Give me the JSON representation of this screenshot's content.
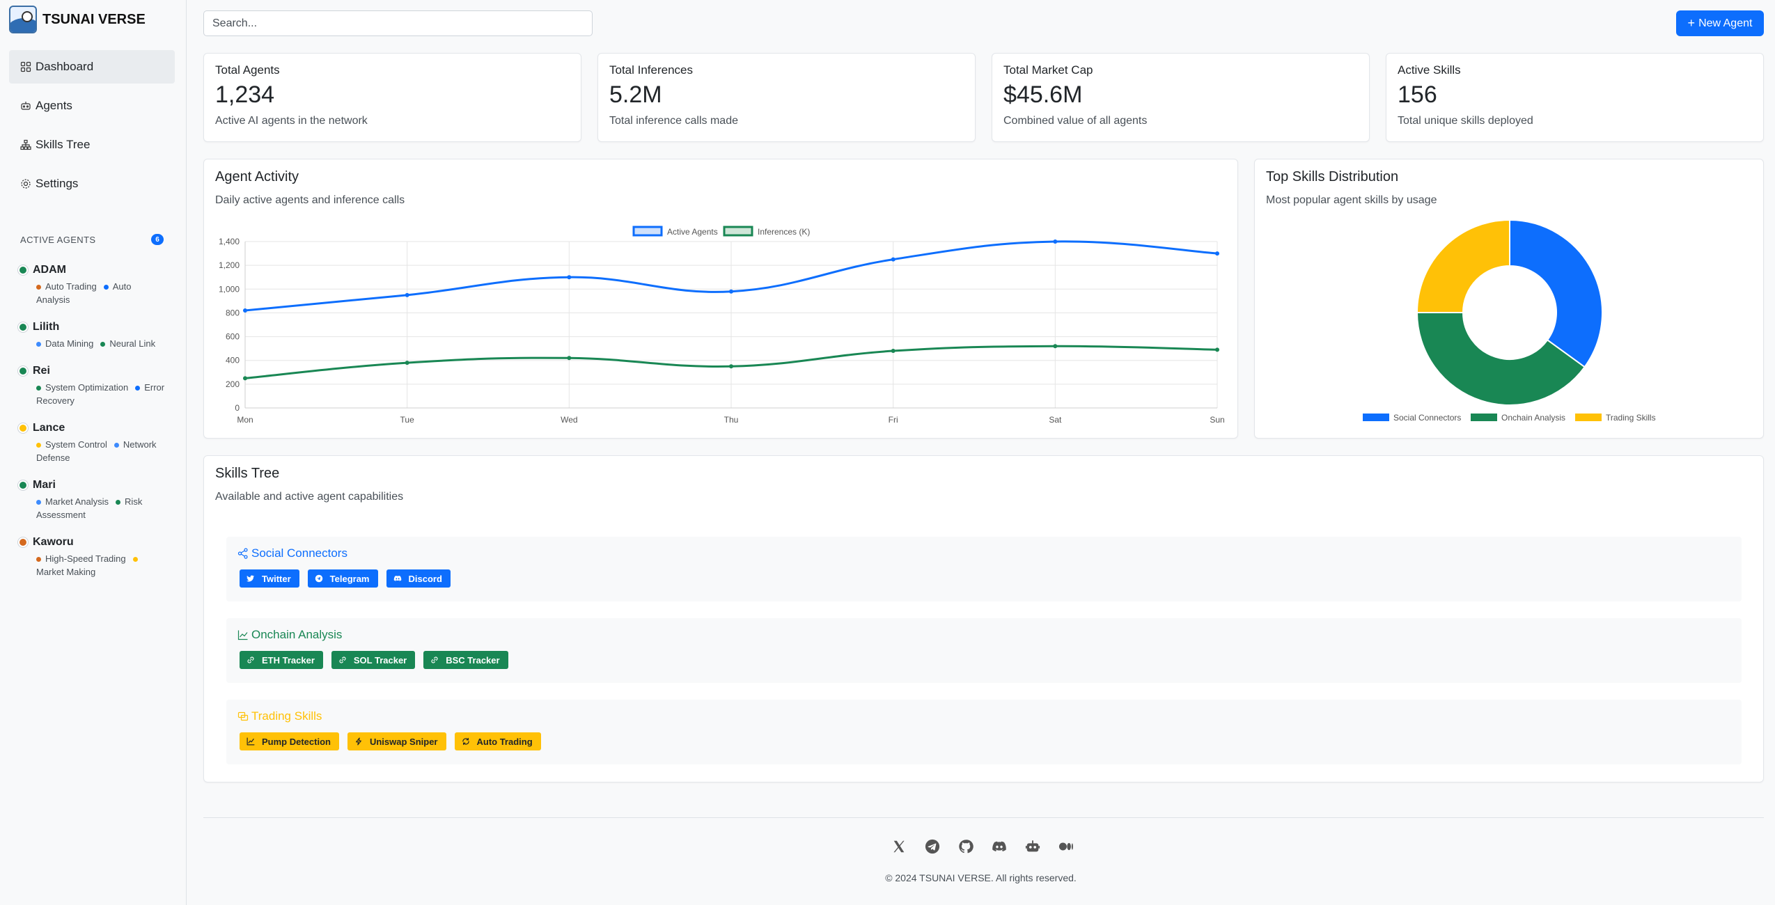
{
  "app": {
    "brand": "TSUNAI VERSE"
  },
  "nav": [
    {
      "label": "Dashboard",
      "icon": "dashboard-icon",
      "active": true
    },
    {
      "label": "Agents",
      "icon": "robot-icon",
      "active": false
    },
    {
      "label": "Skills Tree",
      "icon": "diagram-icon",
      "active": false
    },
    {
      "label": "Settings",
      "icon": "gear-icon",
      "active": false
    }
  ],
  "active_agents": {
    "title": "ACTIVE AGENTS",
    "count": "6",
    "agents": [
      {
        "name": "ADAM",
        "status_color": "#198754",
        "skills": [
          {
            "label": "Auto Trading",
            "color": "#d4691e"
          },
          {
            "label": "Auto Analysis",
            "color": "#0d6efd"
          }
        ]
      },
      {
        "name": "Lilith",
        "status_color": "#198754",
        "skills": [
          {
            "label": "Data Mining",
            "color": "#3d8bfd"
          },
          {
            "label": "Neural Link",
            "color": "#198754"
          }
        ]
      },
      {
        "name": "Rei",
        "status_color": "#198754",
        "skills": [
          {
            "label": "System Optimization",
            "color": "#198754"
          },
          {
            "label": "Error Recovery",
            "color": "#0d6efd"
          }
        ]
      },
      {
        "name": "Lance",
        "status_color": "#ffc107",
        "skills": [
          {
            "label": "System Control",
            "color": "#ffc107"
          },
          {
            "label": "Network Defense",
            "color": "#3d8bfd"
          }
        ]
      },
      {
        "name": "Mari",
        "status_color": "#198754",
        "skills": [
          {
            "label": "Market Analysis",
            "color": "#3d8bfd"
          },
          {
            "label": "Risk Assessment",
            "color": "#198754"
          }
        ]
      },
      {
        "name": "Kaworu",
        "status_color": "#d4691e",
        "skills": [
          {
            "label": "High-Speed Trading",
            "color": "#d4691e"
          },
          {
            "label": "Market Making",
            "color": "#ffc107"
          }
        ]
      }
    ]
  },
  "header": {
    "search_placeholder": "Search...",
    "new_agent_label": "New Agent"
  },
  "stats": [
    {
      "label": "Total Agents",
      "value": "1,234",
      "desc": "Active AI agents in the network"
    },
    {
      "label": "Total Inferences",
      "value": "5.2M",
      "desc": "Total inference calls made"
    },
    {
      "label": "Total Market Cap",
      "value": "$45.6M",
      "desc": "Combined value of all agents"
    },
    {
      "label": "Active Skills",
      "value": "156",
      "desc": "Total unique skills deployed"
    }
  ],
  "activity": {
    "title": "Agent Activity",
    "subtitle": "Daily active agents and inference calls"
  },
  "distribution": {
    "title": "Top Skills Distribution",
    "subtitle": "Most popular agent skills by usage"
  },
  "chart_data": [
    {
      "type": "line",
      "categories": [
        "Mon",
        "Tue",
        "Wed",
        "Thu",
        "Fri",
        "Sat",
        "Sun"
      ],
      "series": [
        {
          "name": "Active Agents",
          "values": [
            820,
            950,
            1100,
            980,
            1250,
            1400,
            1300
          ],
          "color": "#0d6efd"
        },
        {
          "name": "Inferences (K)",
          "values": [
            250,
            380,
            420,
            350,
            480,
            520,
            490
          ],
          "color": "#198754"
        }
      ],
      "ylim": [
        0,
        1400
      ],
      "yticks": [
        "0",
        "200",
        "400",
        "600",
        "800",
        "1,000",
        "1,200",
        "1,400"
      ],
      "grid": true,
      "legend": "top"
    },
    {
      "type": "pie",
      "donut": true,
      "categories": [
        "Social Connectors",
        "Onchain Analysis",
        "Trading Skills"
      ],
      "values": [
        35,
        40,
        25
      ],
      "colors": [
        "#0d6efd",
        "#198754",
        "#ffc107"
      ],
      "legend": "bottom"
    }
  ],
  "skills_tree": {
    "title": "Skills Tree",
    "subtitle": "Available and active agent capabilities",
    "groups": [
      {
        "name": "Social Connectors",
        "color": "#0d6efd",
        "icon": "share-icon",
        "items": [
          {
            "label": "Twitter",
            "icon": "twitter-icon"
          },
          {
            "label": "Telegram",
            "icon": "telegram-icon"
          },
          {
            "label": "Discord",
            "icon": "discord-icon"
          }
        ]
      },
      {
        "name": "Onchain Analysis",
        "color": "#198754",
        "icon": "chart-line-icon",
        "items": [
          {
            "label": "ETH Tracker",
            "icon": "link-icon"
          },
          {
            "label": "SOL Tracker",
            "icon": "link-icon"
          },
          {
            "label": "BSC Tracker",
            "icon": "link-icon"
          }
        ]
      },
      {
        "name": "Trading Skills",
        "color": "#ffc107",
        "icon": "currency-exchange-icon",
        "items": [
          {
            "label": "Pump Detection",
            "icon": "graph-up-icon"
          },
          {
            "label": "Uniswap Sniper",
            "icon": "lightning-icon"
          },
          {
            "label": "Auto Trading",
            "icon": "refresh-icon"
          }
        ]
      }
    ]
  },
  "footer": {
    "socials": [
      "x-icon",
      "telegram-icon",
      "github-icon",
      "discord-icon",
      "robot-icon",
      "medium-icon"
    ],
    "copyright": "© 2024 TSUNAI VERSE. All rights reserved."
  }
}
